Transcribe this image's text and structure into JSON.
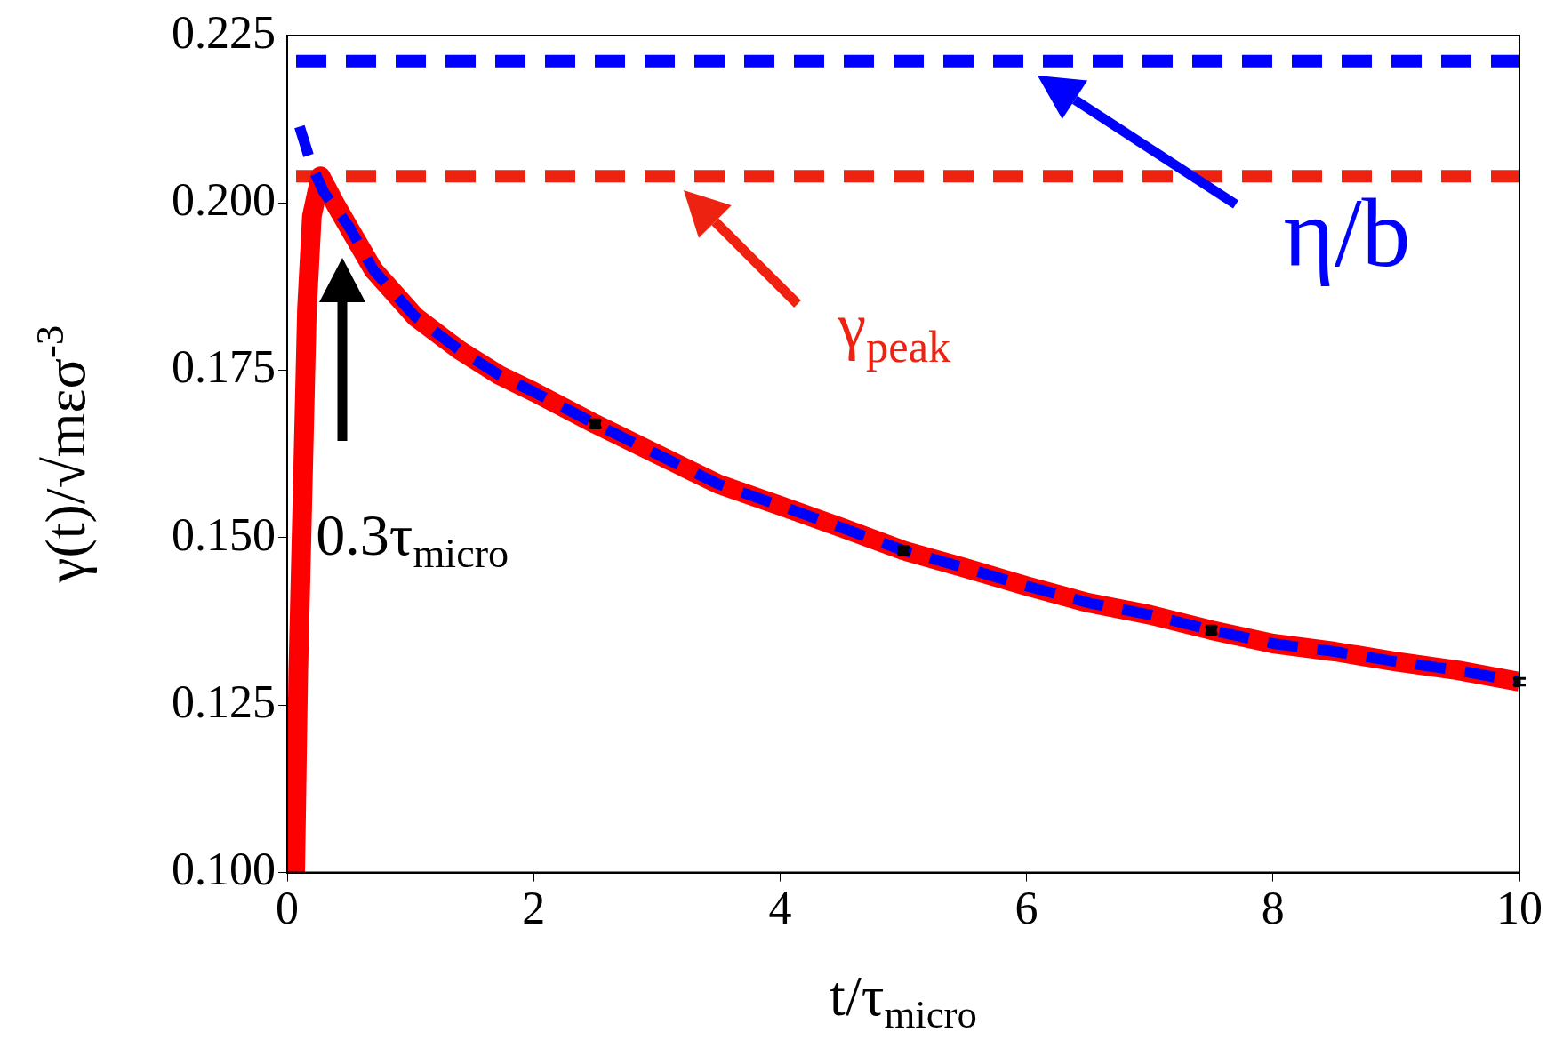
{
  "chart_data": {
    "type": "line",
    "xlabel": "t/τ$_{micro}$",
    "ylabel": "γ(t)/√mεσ$^{-3}$",
    "xlim": [
      0,
      10
    ],
    "xticks": [
      0,
      2,
      4,
      6,
      8,
      10
    ],
    "ylim": [
      0.1,
      0.225
    ],
    "yticks": [
      {
        "value": 0.1,
        "label": "0.100"
      },
      {
        "value": 0.125,
        "label": "0.125"
      },
      {
        "value": 0.15,
        "label": "0.150"
      },
      {
        "value": 0.175,
        "label": "0.175"
      },
      {
        "value": 0.2,
        "label": "0.200"
      },
      {
        "value": 0.225,
        "label": "0.225"
      }
    ],
    "grid": false,
    "legend": false,
    "series": [
      {
        "color": "#ff0000",
        "line_style": "solid",
        "x": [
          0.065,
          0.09,
          0.12,
          0.16,
          0.2,
          0.27,
          0.4,
          0.7,
          1.04,
          1.4,
          1.72,
          2,
          2.5,
          3,
          3.5,
          4,
          4.5,
          5,
          5.5,
          6,
          6.5,
          7,
          7.5,
          8,
          8.5,
          9,
          9.5,
          10
        ],
        "values": [
          0.1,
          0.13,
          0.153,
          0.184,
          0.198,
          0.204,
          0.1995,
          0.19,
          0.183,
          0.178,
          0.1743,
          0.1718,
          0.167,
          0.1625,
          0.158,
          0.1548,
          0.1515,
          0.1481,
          0.1455,
          0.1428,
          0.1403,
          0.1385,
          0.1362,
          0.1342,
          0.133,
          0.1315,
          0.1302,
          0.1285
        ]
      },
      {
        "color": "#0000ff",
        "line_style": "dashed",
        "x": [
          0.1,
          0.2,
          0.3,
          0.5,
          0.7,
          1.04,
          1.4,
          1.72,
          2,
          2.5,
          3,
          3.5,
          4,
          4.5,
          5,
          5.5,
          6,
          6.5,
          7,
          7.5,
          8,
          8.5,
          9,
          9.5,
          10
        ],
        "values": [
          0.2114,
          0.2055,
          0.2015,
          0.1965,
          0.19,
          0.183,
          0.178,
          0.1743,
          0.1718,
          0.167,
          0.1625,
          0.158,
          0.1548,
          0.1515,
          0.1481,
          0.1455,
          0.1428,
          0.1403,
          0.1385,
          0.1362,
          0.1342,
          0.133,
          0.1315,
          0.1302,
          0.1285
        ]
      },
      {
        "type": "scatter",
        "color": "#000000",
        "marker": "square",
        "x": [
          2.5,
          5,
          7.5,
          10
        ],
        "values": [
          0.167,
          0.1481,
          0.1362,
          0.1285
        ],
        "errors": [
          0.0005,
          0.0005,
          0.0005,
          0.0005
        ]
      }
    ],
    "ref_lines": [
      {
        "axis": "y",
        "value": 0.204,
        "color": "#ee2211",
        "line_style": "dashed",
        "label": "γ$_{peak}$"
      },
      {
        "axis": "y",
        "value": 0.2212,
        "color": "#0000ff",
        "line_style": "dashed",
        "label": "η/b"
      }
    ],
    "annotations": [
      "0.3τ$_{micro}$"
    ]
  }
}
